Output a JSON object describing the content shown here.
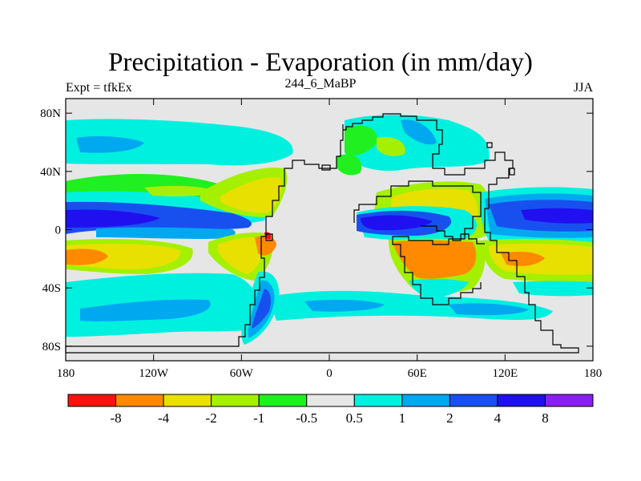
{
  "title": "Precipitation - Evaporation (in mm/day)",
  "left_label": "Expt = tfkEx",
  "center_label": "244_6_MaBP",
  "right_label": "JJA",
  "map": {
    "lon_range": [
      -180,
      180
    ],
    "lat_range": [
      -90,
      90
    ],
    "lat_ticks": [
      {
        "value": 80,
        "label": "80N"
      },
      {
        "value": 40,
        "label": "40N"
      },
      {
        "value": 0,
        "label": "0"
      },
      {
        "value": -40,
        "label": "40S"
      },
      {
        "value": -80,
        "label": "80S"
      }
    ],
    "lon_ticks": [
      {
        "value": -180,
        "label": "180"
      },
      {
        "value": -120,
        "label": "120W"
      },
      {
        "value": -60,
        "label": "60W"
      },
      {
        "value": 0,
        "label": "0"
      },
      {
        "value": 60,
        "label": "60E"
      },
      {
        "value": 120,
        "label": "120E"
      },
      {
        "value": 180,
        "label": "180"
      }
    ]
  },
  "colorbar": {
    "colors": [
      "#ff1010",
      "#ff8a00",
      "#e8e000",
      "#a4f000",
      "#20f020",
      "#e6e6e6",
      "#00f0e0",
      "#00a8f0",
      "#1850f0",
      "#2010f0",
      "#8a20f0"
    ],
    "labels": [
      "-8",
      "-4",
      "-2",
      "-1",
      "-0.5",
      "0.5",
      "1",
      "2",
      "4",
      "8"
    ]
  }
}
